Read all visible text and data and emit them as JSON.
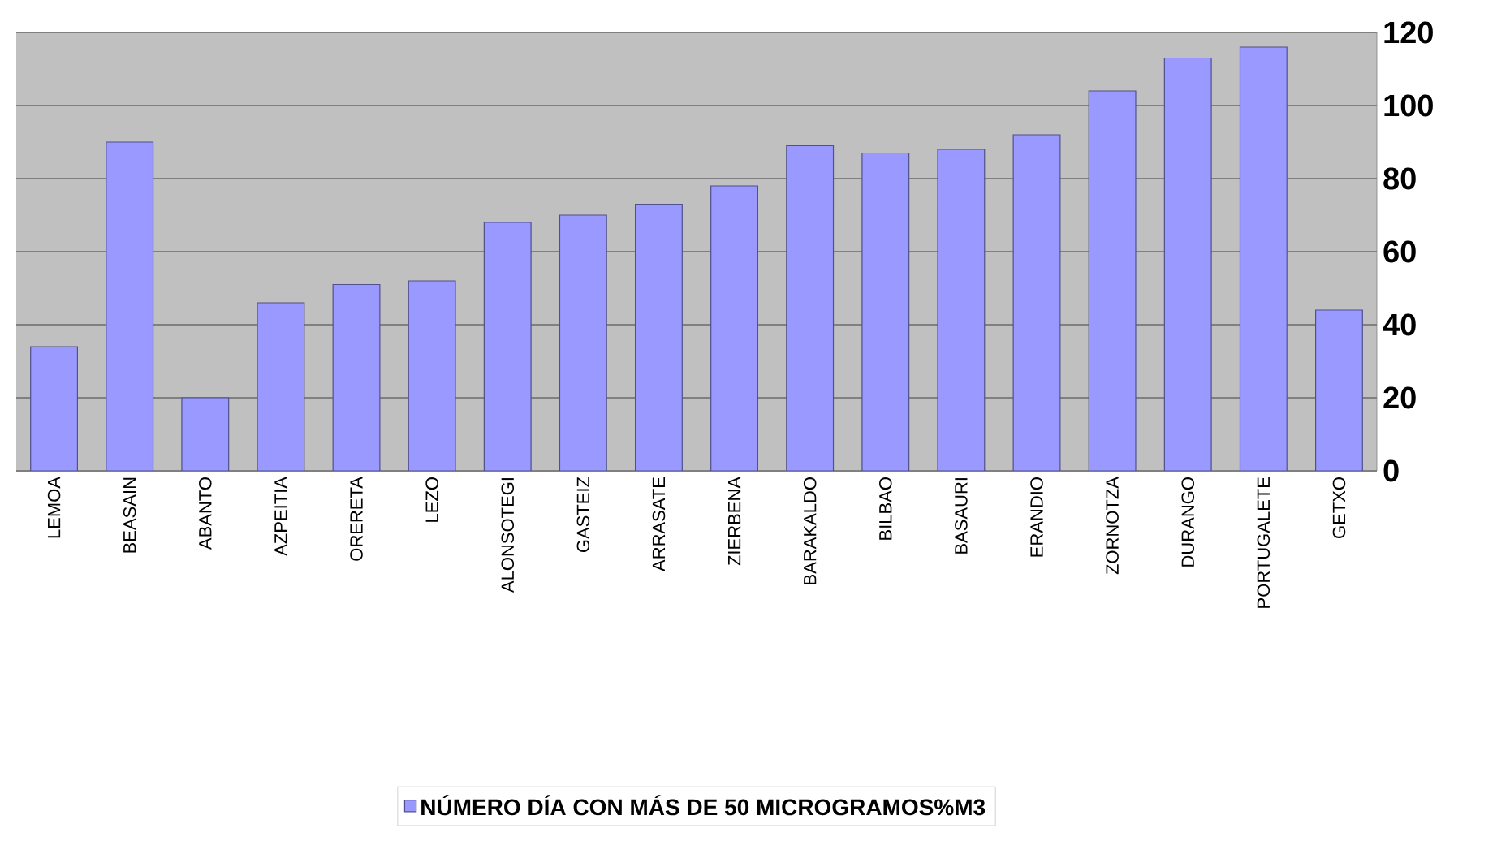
{
  "chart_data": {
    "type": "bar",
    "categories": [
      "LEMOA",
      "BEASAIN",
      "ABANTO",
      "AZPEITIA",
      "ORERETA",
      "LEZO",
      "ALONSOTEGI",
      "GASTEIZ",
      "ARRASATE",
      "ZIERBENA",
      "BARAKALDO",
      "BILBAO",
      "BASAURI",
      "ERANDIO",
      "ZORNOTZA",
      "DURANGO",
      "PORTUGALETE",
      "GETXO"
    ],
    "series": [
      {
        "name": "NÚMERO DÍA CON MÁS DE 50 MICROGRAMOS%M3",
        "color": "#9999ff",
        "values": [
          34,
          90,
          20,
          46,
          51,
          52,
          68,
          70,
          73,
          78,
          89,
          87,
          88,
          92,
          104,
          113,
          116,
          44
        ]
      }
    ],
    "ylim": [
      0,
      120
    ],
    "yticks": [
      0,
      20,
      40,
      60,
      80,
      100,
      120
    ],
    "grid": "y",
    "legend": "bottom"
  }
}
